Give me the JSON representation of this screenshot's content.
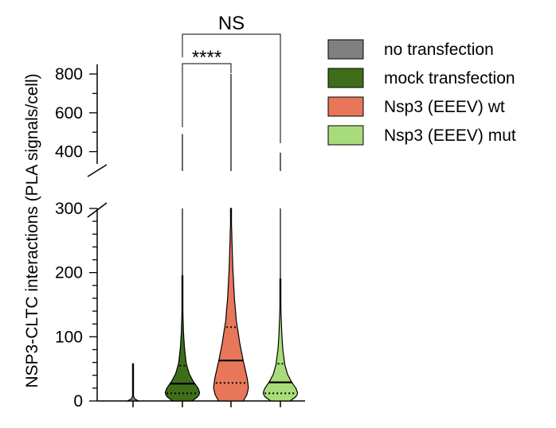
{
  "chart_data": {
    "type": "violin",
    "ylabel": "NSP3-CLTC interactions (PLA signals/cell)",
    "y_axis": {
      "broken": true,
      "lower_segment": {
        "range": [
          0,
          300
        ],
        "ticks": [
          0,
          100,
          200,
          300
        ]
      },
      "upper_segment": {
        "range": [
          300,
          850
        ],
        "ticks": [
          400,
          600,
          800
        ]
      }
    },
    "series": [
      {
        "name": "no transfection",
        "color": "#808080",
        "max": 58,
        "median": 1,
        "q1": 0,
        "q3": 2
      },
      {
        "name": "mock transfection",
        "color": "#3f6e1a",
        "max": 490,
        "median": 27,
        "q1": 12,
        "q3": 55
      },
      {
        "name": "Nsp3 (EEEV) wt",
        "color": "#e8775a",
        "max": 800,
        "median": 63,
        "q1": 28,
        "q3": 115
      },
      {
        "name": "Nsp3 (EEEV) mut",
        "color": "#a8dc7a",
        "max": 395,
        "median": 29,
        "q1": 12,
        "q3": 58
      }
    ],
    "annotations": [
      {
        "text": "****",
        "groups": [
          "mock transfection",
          "Nsp3 (EEEV) wt"
        ]
      },
      {
        "text": "NS",
        "groups": [
          "mock transfection",
          "Nsp3 (EEEV) mut"
        ]
      }
    ],
    "legend_position": "top-right"
  }
}
